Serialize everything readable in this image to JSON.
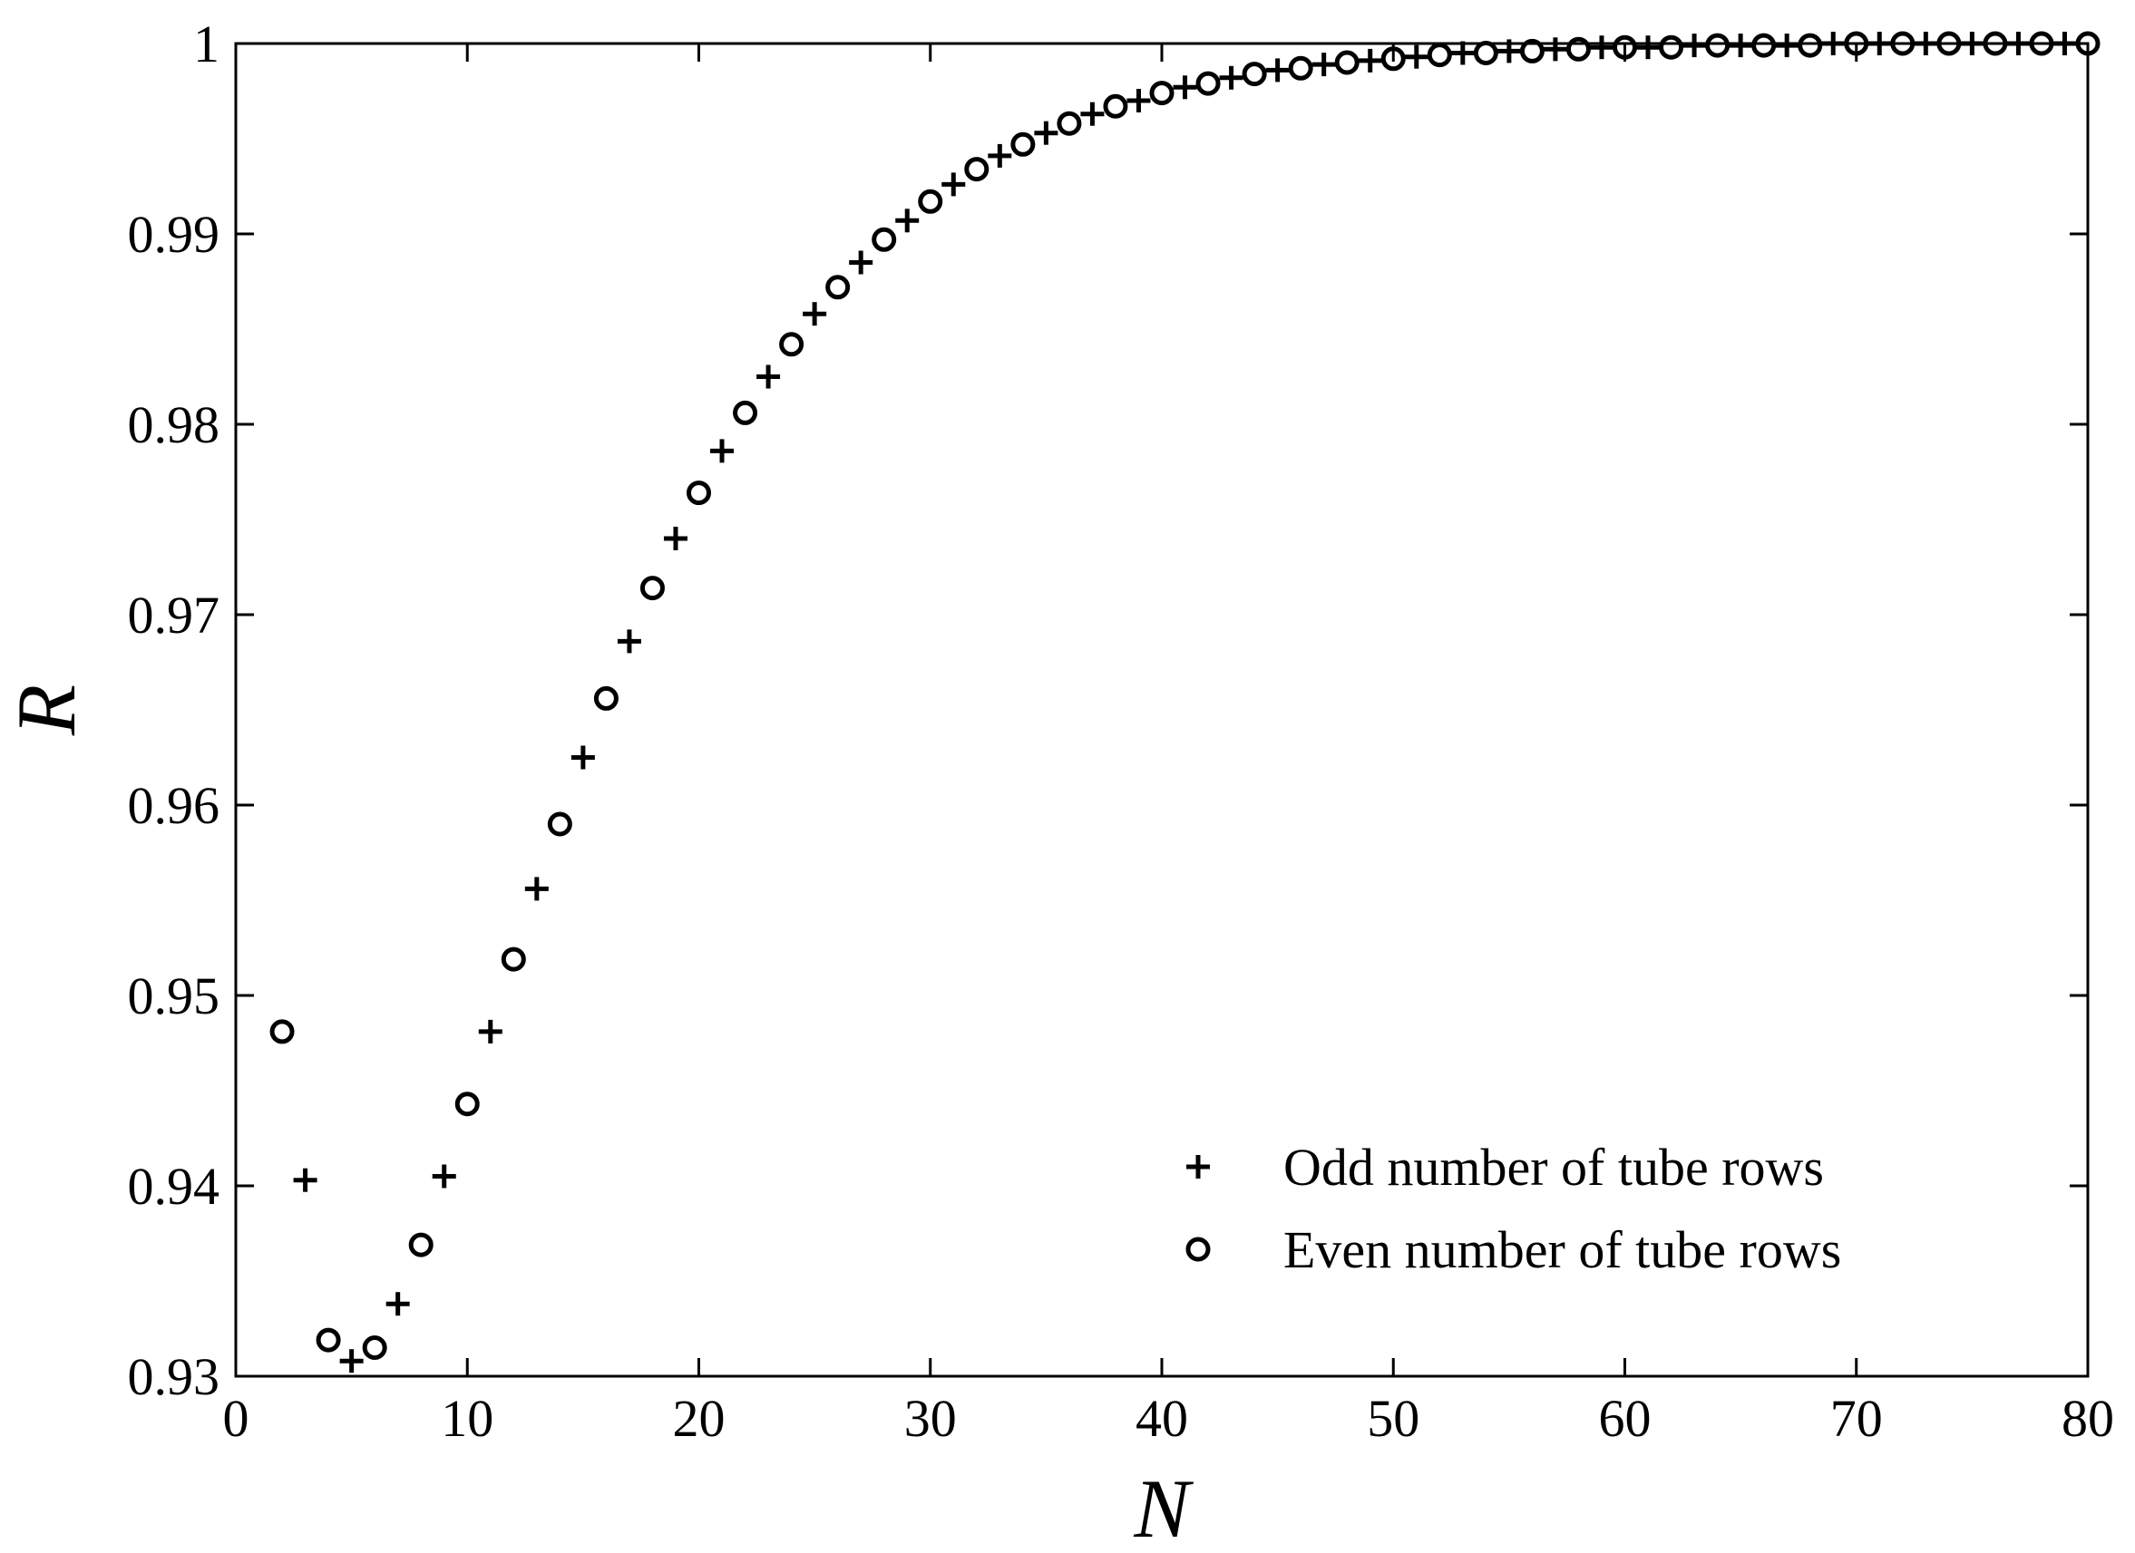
{
  "chart_data": {
    "type": "scatter",
    "xlabel": "N",
    "ylabel": "R",
    "xlim": [
      0,
      80
    ],
    "ylim": [
      0.93,
      1.0
    ],
    "xticks": [
      "0",
      "10",
      "20",
      "30",
      "40",
      "50",
      "60",
      "70",
      "80"
    ],
    "yticks": [
      "0.93",
      "0.94",
      "0.95",
      "0.96",
      "0.97",
      "0.98",
      "0.99",
      "1"
    ],
    "grid": false,
    "legend_position": "bottom-right",
    "series": [
      {
        "name": "Odd number of tube rows",
        "marker": "plus",
        "x": [
          3,
          5,
          7,
          9,
          11,
          13,
          15,
          17,
          19,
          21,
          23,
          25,
          27,
          29,
          31,
          33,
          35,
          37,
          39,
          41,
          43,
          45,
          47,
          49,
          51,
          53,
          55,
          57,
          59,
          61,
          63,
          65,
          67,
          69,
          71,
          73,
          75,
          77,
          79
        ],
        "y": [
          0.9403,
          0.9308,
          0.9338,
          0.9405,
          0.9481,
          0.9556,
          0.9625,
          0.9686,
          0.974,
          0.9786,
          0.9825,
          0.9858,
          0.9885,
          0.9907,
          0.9926,
          0.9941,
          0.9953,
          0.9963,
          0.997,
          0.9977,
          0.9982,
          0.9986,
          0.9989,
          0.9991,
          0.9993,
          0.9995,
          0.9996,
          0.9997,
          0.9998,
          0.9998,
          0.9999,
          0.9999,
          0.9999,
          1.0,
          1.0,
          1.0,
          1.0,
          1.0,
          1.0
        ]
      },
      {
        "name": "Even number of tube rows",
        "marker": "circle",
        "x": [
          2,
          4,
          6,
          8,
          10,
          12,
          14,
          16,
          18,
          20,
          22,
          24,
          26,
          28,
          30,
          32,
          34,
          36,
          38,
          40,
          42,
          44,
          46,
          48,
          50,
          52,
          54,
          56,
          58,
          60,
          62,
          64,
          66,
          68,
          70,
          72,
          74,
          76,
          78,
          80
        ],
        "y": [
          0.9481,
          0.9319,
          0.9315,
          0.9369,
          0.9443,
          0.9519,
          0.959,
          0.9656,
          0.9714,
          0.9764,
          0.9806,
          0.9842,
          0.9872,
          0.9897,
          0.9917,
          0.9934,
          0.9947,
          0.9958,
          0.9967,
          0.9974,
          0.9979,
          0.9984,
          0.9987,
          0.999,
          0.9992,
          0.9994,
          0.9995,
          0.9996,
          0.9997,
          0.9998,
          0.9998,
          0.9999,
          0.9999,
          0.9999,
          1.0,
          1.0,
          1.0,
          1.0,
          1.0,
          1.0
        ]
      }
    ]
  }
}
